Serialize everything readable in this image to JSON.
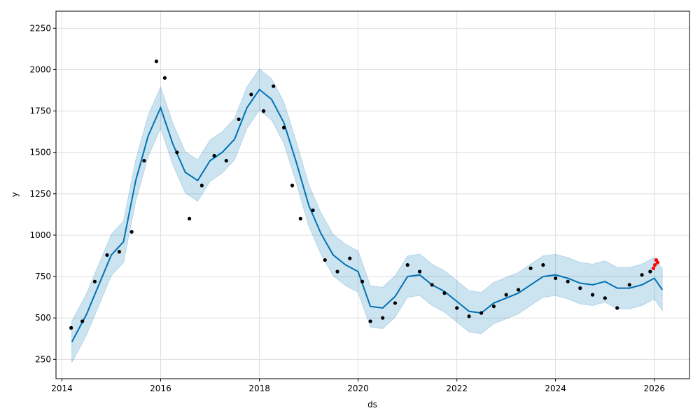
{
  "chart_data": {
    "type": "scatter",
    "title": "",
    "xlabel": "ds",
    "ylabel": "y",
    "xlim": [
      "2013-11-18",
      "2026-09-18"
    ],
    "ylim": [
      133,
      2353
    ],
    "grid": true,
    "x_ticks": [
      "2014",
      "2016",
      "2018",
      "2020",
      "2022",
      "2024",
      "2026"
    ],
    "y_ticks": [
      250,
      500,
      750,
      1000,
      1250,
      1500,
      1750,
      2000,
      2250
    ],
    "colors": {
      "observed": "#000000",
      "recent": "#ff0000",
      "forecast_line": "#0072b2",
      "uncertainty_band": "#0072b2"
    },
    "series": [
      {
        "role": "yhat",
        "kind": "line",
        "points": [
          [
            "2014-03-15",
            355
          ],
          [
            "2014-07-01",
            520
          ],
          [
            "2014-10-01",
            700
          ],
          [
            "2015-01-01",
            880
          ],
          [
            "2015-04-01",
            960
          ],
          [
            "2015-07-01",
            1330
          ],
          [
            "2015-10-01",
            1600
          ],
          [
            "2016-01-01",
            1770
          ],
          [
            "2016-04-01",
            1550
          ],
          [
            "2016-07-01",
            1380
          ],
          [
            "2016-10-01",
            1330
          ],
          [
            "2017-01-01",
            1450
          ],
          [
            "2017-04-01",
            1500
          ],
          [
            "2017-07-01",
            1580
          ],
          [
            "2017-10-01",
            1770
          ],
          [
            "2018-01-01",
            1880
          ],
          [
            "2018-04-01",
            1820
          ],
          [
            "2018-07-01",
            1680
          ],
          [
            "2018-10-01",
            1440
          ],
          [
            "2019-01-01",
            1180
          ],
          [
            "2019-04-01",
            1010
          ],
          [
            "2019-07-01",
            880
          ],
          [
            "2019-10-01",
            820
          ],
          [
            "2020-01-01",
            780
          ],
          [
            "2020-04-01",
            570
          ],
          [
            "2020-07-01",
            560
          ],
          [
            "2020-10-01",
            630
          ],
          [
            "2021-01-01",
            750
          ],
          [
            "2021-04-01",
            760
          ],
          [
            "2021-07-01",
            700
          ],
          [
            "2021-10-01",
            660
          ],
          [
            "2022-01-01",
            600
          ],
          [
            "2022-04-01",
            540
          ],
          [
            "2022-07-01",
            530
          ],
          [
            "2022-10-01",
            590
          ],
          [
            "2023-01-01",
            620
          ],
          [
            "2023-04-01",
            650
          ],
          [
            "2023-07-01",
            700
          ],
          [
            "2023-10-01",
            750
          ],
          [
            "2024-01-01",
            760
          ],
          [
            "2024-04-01",
            740
          ],
          [
            "2024-07-01",
            710
          ],
          [
            "2024-10-01",
            700
          ],
          [
            "2025-01-01",
            720
          ],
          [
            "2025-04-01",
            680
          ],
          [
            "2025-07-01",
            680
          ],
          [
            "2025-10-01",
            700
          ],
          [
            "2026-01-01",
            740
          ],
          [
            "2026-03-01",
            670
          ]
        ]
      },
      {
        "role": "uncertainty_band",
        "kind": "area",
        "upper_offset": 125,
        "lower_offset": 125
      },
      {
        "role": "observed",
        "kind": "scatter",
        "points": [
          [
            "2014-03-10",
            440
          ],
          [
            "2014-06-01",
            480
          ],
          [
            "2014-09-01",
            720
          ],
          [
            "2014-12-01",
            880
          ],
          [
            "2015-03-01",
            900
          ],
          [
            "2015-06-01",
            1020
          ],
          [
            "2015-09-01",
            1450
          ],
          [
            "2015-12-01",
            2050
          ],
          [
            "2016-02-01",
            1950
          ],
          [
            "2016-05-01",
            1500
          ],
          [
            "2016-08-01",
            1100
          ],
          [
            "2016-11-01",
            1300
          ],
          [
            "2017-02-01",
            1480
          ],
          [
            "2017-05-01",
            1450
          ],
          [
            "2017-08-01",
            1700
          ],
          [
            "2017-11-01",
            1850
          ],
          [
            "2018-02-01",
            1750
          ],
          [
            "2018-04-15",
            1900
          ],
          [
            "2018-07-01",
            1650
          ],
          [
            "2018-09-01",
            1300
          ],
          [
            "2018-11-01",
            1100
          ],
          [
            "2019-02-01",
            1150
          ],
          [
            "2019-05-01",
            850
          ],
          [
            "2019-08-01",
            780
          ],
          [
            "2019-11-01",
            860
          ],
          [
            "2020-02-01",
            720
          ],
          [
            "2020-04-01",
            480
          ],
          [
            "2020-07-01",
            500
          ],
          [
            "2020-10-01",
            590
          ],
          [
            "2021-01-01",
            820
          ],
          [
            "2021-04-01",
            780
          ],
          [
            "2021-07-01",
            700
          ],
          [
            "2021-10-01",
            650
          ],
          [
            "2022-01-01",
            560
          ],
          [
            "2022-04-01",
            510
          ],
          [
            "2022-07-01",
            530
          ],
          [
            "2022-10-01",
            570
          ],
          [
            "2023-01-01",
            640
          ],
          [
            "2023-04-01",
            670
          ],
          [
            "2023-07-01",
            800
          ],
          [
            "2023-10-01",
            820
          ],
          [
            "2024-01-01",
            740
          ],
          [
            "2024-04-01",
            720
          ],
          [
            "2024-07-01",
            680
          ],
          [
            "2024-10-01",
            640
          ],
          [
            "2025-01-01",
            620
          ],
          [
            "2025-04-01",
            560
          ],
          [
            "2025-07-01",
            700
          ],
          [
            "2025-10-01",
            760
          ],
          [
            "2025-12-01",
            780
          ]
        ]
      },
      {
        "role": "recent",
        "kind": "scatter",
        "points": [
          [
            "2025-12-25",
            800
          ],
          [
            "2026-01-05",
            820
          ],
          [
            "2026-01-15",
            850
          ],
          [
            "2026-01-25",
            835
          ]
        ]
      }
    ]
  }
}
